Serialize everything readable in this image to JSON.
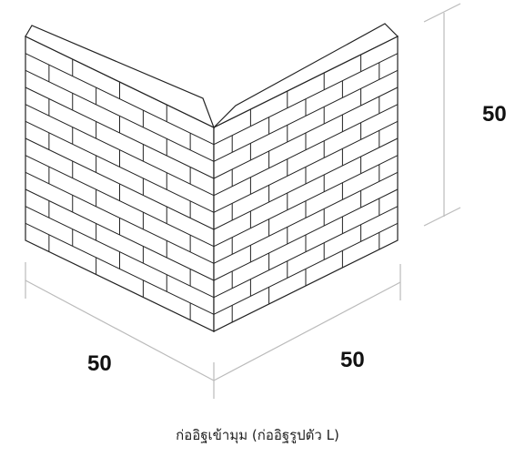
{
  "caption": "ก่ออิฐเข้ามุม (ก่ออิฐรูปตัว L)",
  "dimensions": {
    "height": "50",
    "left_length": "50",
    "right_length": "50"
  },
  "colors": {
    "line": "#222222",
    "dimension_line": "#bbbbbb",
    "face": "#ffffff"
  }
}
